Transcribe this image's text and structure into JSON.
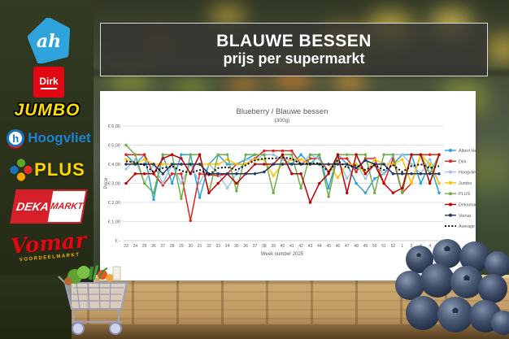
{
  "header": {
    "title": "BLAUWE BESSEN",
    "subtitle": "prijs per supermarkt"
  },
  "sidebar": {
    "logos": [
      {
        "name": "albert-heijn",
        "label": "ah"
      },
      {
        "name": "dirk",
        "label": "Dirk"
      },
      {
        "name": "jumbo",
        "label": "JUMBO"
      },
      {
        "name": "hoogvliet",
        "label": "Hoogvliet",
        "icon_letter": "h"
      },
      {
        "name": "plus",
        "label": "PLUS"
      },
      {
        "name": "dekamarkt",
        "label_left": "DEKA",
        "label_right": "MARKT"
      },
      {
        "name": "vomar",
        "label": "Vomar",
        "sublabel": "VOORDEELMARKT"
      }
    ]
  },
  "chart_data": {
    "type": "line",
    "title": "Blueberry / Blauwe bessen",
    "subtitle": "(300g)",
    "xlabel": "Week number 2025",
    "ylabel": "Price",
    "ylim": [
      0,
      6
    ],
    "yticklabels": [
      "€ 6,00",
      "€ 5,00",
      "€ 4,00",
      "€ 3,00",
      "€ 2,00",
      "€ 1,00",
      "€ -"
    ],
    "grid": true,
    "legend_position": "right",
    "categories": [
      "23",
      "24",
      "25",
      "26",
      "27",
      "28",
      "29",
      "30",
      "31",
      "32",
      "33",
      "34",
      "35",
      "36",
      "37",
      "38",
      "39",
      "40",
      "41",
      "42",
      "43",
      "44",
      "45",
      "46",
      "47",
      "48",
      "49",
      "50",
      "51",
      "52",
      "1",
      "2",
      "3",
      "4",
      "5"
    ],
    "series": [
      {
        "name": "Albert Heijn",
        "color": "#29a3dc",
        "dashed": false,
        "values": [
          4.5,
          4.0,
          4.5,
          2.15,
          4.5,
          3.0,
          4.5,
          4.5,
          2.25,
          4.0,
          4.5,
          4.0,
          4.0,
          4.25,
          4.5,
          4.5,
          4.5,
          4.25,
          4.0,
          4.5,
          4.0,
          4.5,
          2.75,
          4.5,
          4.0,
          3.0,
          2.5,
          3.25,
          3.5,
          4.0,
          4.5,
          4.5,
          3.0,
          4.0,
          2.5
        ]
      },
      {
        "name": "Dirk",
        "color": "#e2231a",
        "dashed": false,
        "values": [
          4.5,
          4.5,
          4.5,
          3.5,
          2.9,
          3.5,
          3.5,
          1.05,
          3.5,
          3.45,
          3.4,
          3.5,
          4.0,
          4.0,
          4.3,
          4.7,
          4.7,
          4.7,
          4.7,
          4.0,
          4.3,
          4.3,
          3.6,
          4.3,
          4.3,
          3.6,
          4.3,
          4.3,
          3.0,
          4.3,
          2.5,
          3.0,
          4.5,
          4.5,
          4.5
        ]
      },
      {
        "name": "Hoogvliet",
        "color": "#9dc3e6",
        "dashed": false,
        "values": [
          3.75,
          4.25,
          3.0,
          4.0,
          3.0,
          4.0,
          3.0,
          4.0,
          3.0,
          4.0,
          3.5,
          2.75,
          3.5,
          4.25,
          4.25,
          4.5,
          4.5,
          4.25,
          4.25,
          4.0,
          4.5,
          4.25,
          3.5,
          4.25,
          3.25,
          4.0,
          3.25,
          4.0,
          3.5,
          4.5,
          4.5,
          4.0,
          3.5,
          4.25,
          3.0
        ]
      },
      {
        "name": "Jumbo",
        "color": "#ffc000",
        "dashed": false,
        "values": [
          4.25,
          4.0,
          4.25,
          4.0,
          4.0,
          4.0,
          4.0,
          4.0,
          4.0,
          4.0,
          4.0,
          4.25,
          4.0,
          4.0,
          4.25,
          4.25,
          3.4,
          4.0,
          4.25,
          4.25,
          4.0,
          4.0,
          4.0,
          3.3,
          4.0,
          4.0,
          3.5,
          4.25,
          4.0,
          4.0,
          4.25,
          3.0,
          4.5,
          4.0,
          3.0
        ]
      },
      {
        "name": "PLUS",
        "color": "#70ad47",
        "dashed": false,
        "values": [
          5.0,
          4.5,
          3.0,
          2.5,
          4.5,
          4.5,
          2.2,
          4.5,
          4.5,
          2.5,
          4.5,
          4.5,
          2.6,
          4.5,
          4.5,
          4.5,
          2.5,
          4.5,
          4.5,
          2.75,
          4.5,
          4.5,
          2.3,
          4.5,
          4.5,
          4.5,
          4.5,
          2.5,
          4.5,
          4.5,
          2.5,
          4.5,
          4.5,
          3.5,
          4.5
        ]
      },
      {
        "name": "Dekamarkt",
        "color": "#c00000",
        "dashed": false,
        "values": [
          3.0,
          3.5,
          3.5,
          3.5,
          4.3,
          4.5,
          4.3,
          3.5,
          4.5,
          2.5,
          3.0,
          3.5,
          3.0,
          3.5,
          4.0,
          4.0,
          4.0,
          4.5,
          3.5,
          3.5,
          2.0,
          3.0,
          3.5,
          4.5,
          2.5,
          4.5,
          3.5,
          4.0,
          3.0,
          2.5,
          2.75,
          4.5,
          4.5,
          3.0,
          4.5
        ]
      },
      {
        "name": "Vomar",
        "color": "#1f3864",
        "dashed": false,
        "values": [
          4.0,
          4.0,
          4.0,
          4.0,
          3.5,
          4.0,
          4.0,
          4.0,
          4.0,
          3.5,
          3.5,
          3.5,
          3.5,
          3.5,
          3.5,
          3.6,
          4.0,
          4.0,
          4.0,
          4.0,
          4.0,
          4.0,
          4.0,
          4.0,
          4.0,
          3.8,
          4.2,
          4.0,
          4.0,
          3.5,
          3.5,
          3.5,
          3.5,
          3.5,
          3.5
        ]
      },
      {
        "name": "Average",
        "color": "#000000",
        "dashed": true,
        "values": [
          4.15,
          4.1,
          3.95,
          3.6,
          3.8,
          3.9,
          3.65,
          3.55,
          3.7,
          3.45,
          3.8,
          3.85,
          3.7,
          3.95,
          4.2,
          4.3,
          4.3,
          4.35,
          4.3,
          4.0,
          4.05,
          4.05,
          3.6,
          4.2,
          3.8,
          3.95,
          3.7,
          3.95,
          3.7,
          3.95,
          3.6,
          3.9,
          4.0,
          3.8,
          3.9
        ]
      }
    ]
  }
}
